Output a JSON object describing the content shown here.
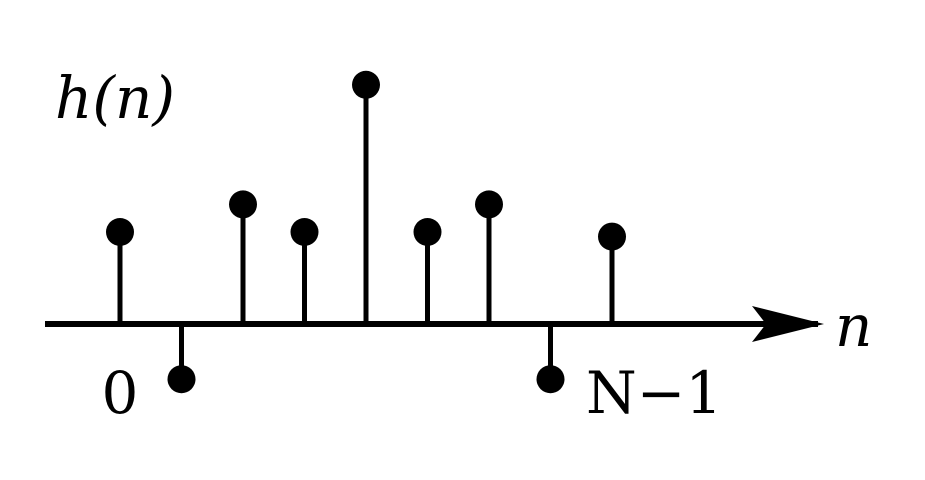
{
  "chart_data": {
    "type": "stem",
    "ylabel": "h(n)",
    "xlabel": "n",
    "tick_labels": {
      "start": "0",
      "end": "N−1"
    },
    "x": [
      0,
      1,
      2,
      3,
      4,
      5,
      6,
      7,
      8
    ],
    "values": [
      1.0,
      -0.6,
      1.3,
      1.0,
      2.6,
      1.0,
      1.3,
      -0.6,
      0.95
    ],
    "grid": false,
    "colors": {
      "stem": "#000000",
      "axis": "#000000"
    }
  }
}
